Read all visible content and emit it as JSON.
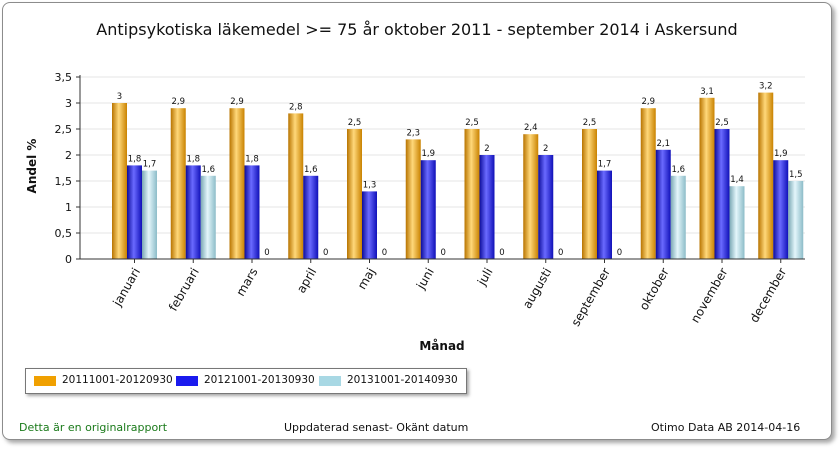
{
  "title": "Antipsykotiska läkemedel >= 75 år oktober 2011 - september 2014 i  Askersund",
  "footer": {
    "left": "Detta är en originalrapport",
    "center": "Uppdaterad senast- Okänt datum",
    "right": "Otimo Data AB 2014-04-16"
  },
  "colors": {
    "series1": "#f0a000",
    "series2": "#1a1aee",
    "series3": "#a8d8e4"
  },
  "chart_data": {
    "type": "bar",
    "xlabel": "Månad",
    "ylabel": "Andel %",
    "ylim": [
      0,
      3.5
    ],
    "yticks": [
      "0",
      "0,5",
      "1",
      "1,5",
      "2",
      "2,5",
      "3",
      "3,5"
    ],
    "categories": [
      "januari",
      "februari",
      "mars",
      "april",
      "maj",
      "juni",
      "juli",
      "augusti",
      "september",
      "oktober",
      "november",
      "december"
    ],
    "series": [
      {
        "name": "20111001-20120930",
        "values": [
          3,
          2.9,
          2.9,
          2.8,
          2.5,
          2.3,
          2.5,
          2.4,
          2.5,
          2.9,
          3.1,
          3.2
        ],
        "labels": [
          "3",
          "2,9",
          "2,9",
          "2,8",
          "2,5",
          "2,3",
          "2,5",
          "2,4",
          "2,5",
          "2,9",
          "3,1",
          "3,2"
        ]
      },
      {
        "name": "20121001-20130930",
        "values": [
          1.8,
          1.8,
          1.8,
          1.6,
          1.3,
          1.9,
          2,
          2,
          1.7,
          2.1,
          2.5,
          1.9
        ],
        "labels": [
          "1,8",
          "1,8",
          "1,8",
          "1,6",
          "1,3",
          "1,9",
          "2",
          "2",
          "1,7",
          "2,1",
          "2,5",
          "1,9"
        ]
      },
      {
        "name": "20131001-20140930",
        "values": [
          1.7,
          1.6,
          0,
          0,
          0,
          0,
          0,
          0,
          0,
          1.6,
          1.4,
          1.5
        ],
        "labels": [
          "1,7",
          "1,6",
          "0",
          "0",
          "0",
          "0",
          "0",
          "0",
          "0",
          "1,6",
          "1,4",
          "1,5"
        ]
      }
    ],
    "grid": true,
    "legend": "bottom-left"
  }
}
